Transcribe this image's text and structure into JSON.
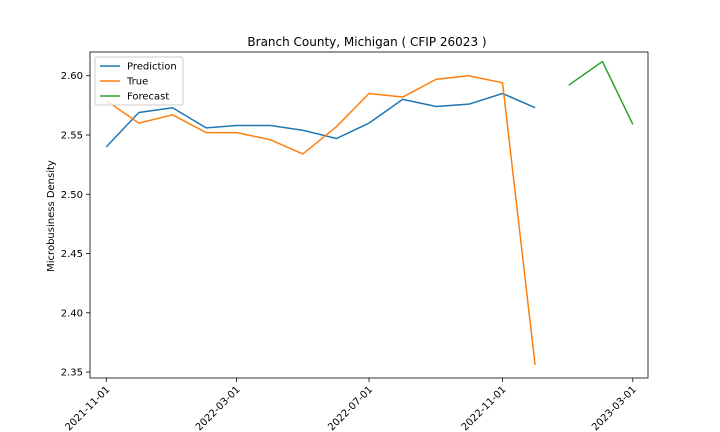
{
  "chart_data": {
    "type": "line",
    "title": "Branch County, Michigan ( CFIP 26023 )",
    "xlabel": "",
    "ylabel": "Microbusiness Density",
    "ylim": [
      2.345,
      2.62
    ],
    "yticks": [
      2.35,
      2.4,
      2.45,
      2.5,
      2.55,
      2.6
    ],
    "ytick_labels": [
      "2.35",
      "2.40",
      "2.45",
      "2.50",
      "2.55",
      "2.60"
    ],
    "xticks": [
      "2021-11-01",
      "2022-03-01",
      "2022-07-01",
      "2022-11-01",
      "2023-03-01"
    ],
    "grid": false,
    "legend_position": "upper-left",
    "colors": {
      "Prediction": "#1f77b4",
      "True": "#ff7f0e",
      "Forecast": "#2ca02c"
    },
    "series": [
      {
        "name": "Prediction",
        "x": [
          "2021-11-01",
          "2021-12-01",
          "2022-01-01",
          "2022-02-01",
          "2022-03-01",
          "2022-04-01",
          "2022-05-01",
          "2022-06-01",
          "2022-07-01",
          "2022-08-01",
          "2022-09-01",
          "2022-10-01",
          "2022-11-01",
          "2022-12-01"
        ],
        "values": [
          2.54,
          2.569,
          2.573,
          2.556,
          2.558,
          2.558,
          2.554,
          2.547,
          2.56,
          2.58,
          2.574,
          2.576,
          2.585,
          2.573
        ]
      },
      {
        "name": "True",
        "x": [
          "2021-11-01",
          "2021-12-01",
          "2022-01-01",
          "2022-02-01",
          "2022-03-01",
          "2022-04-01",
          "2022-05-01",
          "2022-06-01",
          "2022-07-01",
          "2022-08-01",
          "2022-09-01",
          "2022-10-01",
          "2022-11-01",
          "2022-12-01"
        ],
        "values": [
          2.579,
          2.56,
          2.567,
          2.552,
          2.552,
          2.546,
          2.534,
          2.557,
          2.585,
          2.582,
          2.597,
          2.6,
          2.594,
          2.356
        ]
      },
      {
        "name": "Forecast",
        "x": [
          "2023-01-01",
          "2023-02-01",
          "2023-03-01"
        ],
        "values": [
          2.592,
          2.612,
          2.559
        ]
      }
    ]
  }
}
